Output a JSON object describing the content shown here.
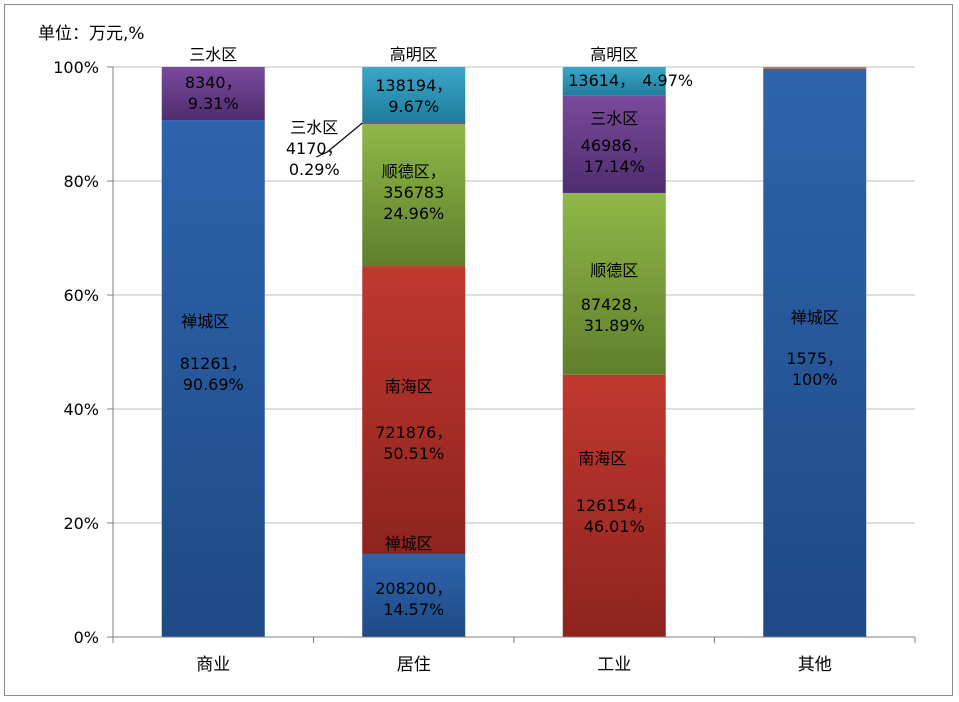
{
  "chart_data": {
    "type": "bar",
    "stacked": "percent",
    "unit_label": "单位：万元,%",
    "categories": [
      "商业",
      "居住",
      "工业",
      "其他"
    ],
    "yticks": [
      "0%",
      "20%",
      "40%",
      "60%",
      "80%",
      "100%"
    ],
    "ylim": [
      0,
      100
    ],
    "grid": true,
    "series": [
      {
        "name": "禅城区",
        "color": "#2e64ad",
        "colorDark": "#1e4a86"
      },
      {
        "name": "南海区",
        "color": "#c0392f",
        "colorDark": "#8e231e"
      },
      {
        "name": "顺德区",
        "color": "#8fb848",
        "colorDark": "#5f7f2c"
      },
      {
        "name": "三水区",
        "color": "#7a4a9c",
        "colorDark": "#4f2c6f"
      },
      {
        "name": "高明区",
        "color": "#3aa6c8",
        "colorDark": "#1f7d9c"
      },
      {
        "name": "",
        "color": "#e0803a",
        "colorDark": "#c06020"
      }
    ],
    "bars": [
      {
        "category": "商业",
        "segments": [
          {
            "series": "禅城区",
            "value": 81261,
            "percent": 90.69,
            "label_name": "禅城区",
            "label_value": "81261，",
            "label_pct": "90.69%"
          },
          {
            "series": "三水区",
            "value": 8340,
            "percent": 9.31,
            "label_name": "三水区",
            "label_value": "8340，",
            "label_pct": "9.31%"
          }
        ]
      },
      {
        "category": "居住",
        "segments": [
          {
            "series": "禅城区",
            "value": 208200,
            "percent": 14.57,
            "label_name": "禅城区",
            "label_value": "208200，",
            "label_pct": "14.57%"
          },
          {
            "series": "南海区",
            "value": 721876,
            "percent": 50.51,
            "label_name": "南海区",
            "label_value": "721876，",
            "label_pct": "50.51%"
          },
          {
            "series": "顺德区",
            "value": 356783,
            "percent": 24.96,
            "label_name": "顺德区，",
            "label_value": "356783",
            "label_pct": "24.96%"
          },
          {
            "series": "三水区",
            "value": 4170,
            "percent": 0.29,
            "label_name": "三水区",
            "label_value": "4170，",
            "label_pct": "0.29%"
          },
          {
            "series": "高明区",
            "value": 138194,
            "percent": 9.67,
            "label_name": "高明区",
            "label_value": "138194，",
            "label_pct": "9.67%"
          }
        ]
      },
      {
        "category": "工业",
        "segments": [
          {
            "series": "南海区",
            "value": 126154,
            "percent": 46.01,
            "label_name": "南海区",
            "label_value": "126154，",
            "label_pct": "46.01%"
          },
          {
            "series": "顺德区",
            "value": 87428,
            "percent": 31.89,
            "label_name": "顺德区",
            "label_value": "87428，",
            "label_pct": "31.89%"
          },
          {
            "series": "三水区",
            "value": 46986,
            "percent": 17.14,
            "label_name": "三水区",
            "label_value": "46986，",
            "label_pct": "17.14%"
          },
          {
            "series": "高明区",
            "value": 13614,
            "percent": 4.97,
            "label_name": "高明区",
            "label_value": "13614，",
            "label_pct": "4.97%"
          }
        ]
      },
      {
        "category": "其他",
        "segments": [
          {
            "series": "禅城区",
            "value": 1575,
            "percent": 99.7,
            "label_name": "禅城区",
            "label_value": "1575，",
            "label_pct": "100%"
          },
          {
            "series": "",
            "percent": 0.3
          }
        ]
      }
    ]
  }
}
